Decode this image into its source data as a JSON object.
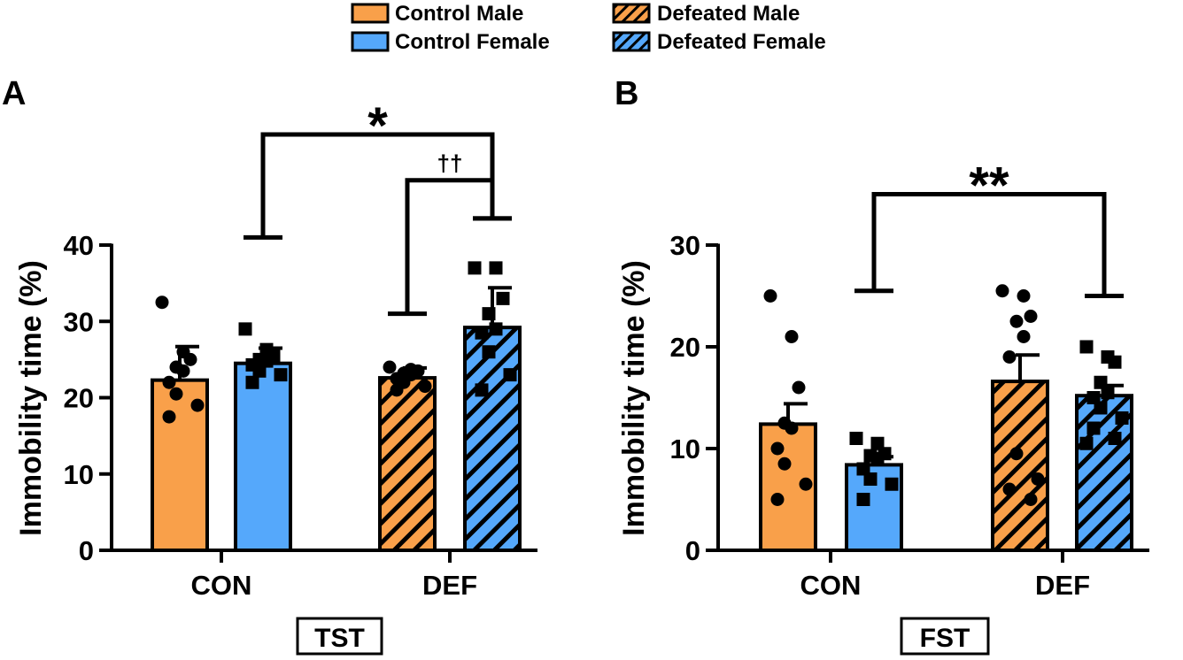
{
  "legend": {
    "items": [
      {
        "label": "Control Male",
        "pattern": "solid",
        "color": "#F9A04A"
      },
      {
        "label": "Control Female",
        "pattern": "solid",
        "color": "#55A8FB"
      },
      {
        "label": "Defeated Male",
        "pattern": "hatched",
        "color": "#F9A04A"
      },
      {
        "label": "Defeated Female",
        "pattern": "hatched",
        "color": "#55A8FB"
      }
    ]
  },
  "colors": {
    "male": "#F9A04A",
    "female": "#55A8FB",
    "ink": "#000000"
  },
  "chart_data": [
    {
      "panel_label": "A",
      "type": "bar",
      "box_label": "TST",
      "ylabel": "Immobility time (%)",
      "xlabel": "",
      "ylim": [
        0,
        40
      ],
      "yticks": [
        0,
        10,
        20,
        30,
        40
      ],
      "categories": [
        "CON",
        "DEF"
      ],
      "series": [
        {
          "name": "Control Male",
          "group": "CON",
          "sex": "male",
          "defeated": false,
          "mean": 22.3,
          "sem": 4.4,
          "marker": "circle",
          "points": [
            32.5,
            26.0,
            25.0,
            24.0,
            23.5,
            22.0,
            20.5,
            19.0,
            17.5
          ]
        },
        {
          "name": "Control Female",
          "group": "CON",
          "sex": "female",
          "defeated": false,
          "mean": 24.5,
          "sem": 2.0,
          "marker": "square",
          "points": [
            29.0,
            26.3,
            25.5,
            25.0,
            24.8,
            24.3,
            23.5,
            23.0,
            22.0
          ]
        },
        {
          "name": "Defeated Male",
          "group": "DEF",
          "sex": "male",
          "defeated": true,
          "mean": 22.6,
          "sem": 1.3,
          "marker": "circle",
          "points": [
            24.0,
            23.7,
            23.5,
            23.2,
            23.0,
            22.5,
            22.0,
            21.5,
            21.0
          ]
        },
        {
          "name": "Defeated Female",
          "group": "DEF",
          "sex": "female",
          "defeated": true,
          "mean": 29.2,
          "sem": 5.2,
          "marker": "square",
          "points": [
            37.0,
            37.0,
            33.0,
            31.0,
            29.0,
            28.5,
            26.0,
            23.0,
            21.0
          ]
        }
      ],
      "annotations": [
        {
          "text": "*",
          "from": "Control Female",
          "to": "Defeated Female",
          "left_end": 41,
          "right_end": 43.5,
          "top": 54.5
        },
        {
          "text": "††",
          "from": "Defeated Male",
          "to": "Defeated Female",
          "left_end": 31,
          "right_end": 43.5,
          "top": 48.5
        }
      ]
    },
    {
      "panel_label": "B",
      "type": "bar",
      "box_label": "FST",
      "ylabel": "Immobility time (%)",
      "xlabel": "",
      "ylim": [
        0,
        30
      ],
      "yticks": [
        0,
        10,
        20,
        30
      ],
      "categories": [
        "CON",
        "DEF"
      ],
      "series": [
        {
          "name": "Control Male",
          "group": "CON",
          "sex": "male",
          "defeated": false,
          "mean": 12.4,
          "sem": 2.0,
          "marker": "circle",
          "points": [
            25.0,
            21.0,
            16.0,
            12.5,
            12.0,
            10.0,
            8.5,
            6.5,
            5.0
          ]
        },
        {
          "name": "Control Female",
          "group": "CON",
          "sex": "female",
          "defeated": false,
          "mean": 8.4,
          "sem": 0.8,
          "marker": "square",
          "points": [
            11.0,
            10.5,
            9.5,
            9.3,
            9.0,
            8.0,
            7.0,
            6.5,
            5.0
          ]
        },
        {
          "name": "Defeated Male",
          "group": "DEF",
          "sex": "male",
          "defeated": true,
          "mean": 16.6,
          "sem": 2.6,
          "marker": "circle",
          "points": [
            25.5,
            25.0,
            23.0,
            22.5,
            21.0,
            19.0,
            9.5,
            7.0,
            6.0,
            5.0
          ]
        },
        {
          "name": "Defeated Female",
          "group": "DEF",
          "sex": "female",
          "defeated": true,
          "mean": 15.2,
          "sem": 1.0,
          "marker": "square",
          "points": [
            20.0,
            19.0,
            18.5,
            16.5,
            15.5,
            15.0,
            14.0,
            13.0,
            12.0,
            11.0,
            10.5
          ]
        }
      ],
      "annotations": [
        {
          "text": "**",
          "from": "Control Female",
          "to": "Defeated Female",
          "left_end": 25.5,
          "right_end": 25,
          "top": 35
        }
      ]
    }
  ]
}
